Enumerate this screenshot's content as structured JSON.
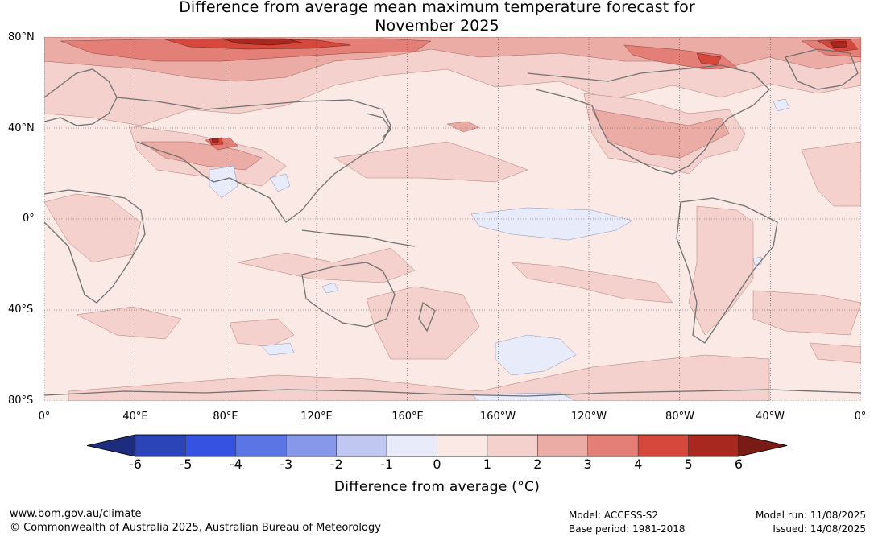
{
  "title": {
    "line1": "Difference from average mean maximum temperature forecast for",
    "line2": "November 2025"
  },
  "lat_labels": [
    "80°N",
    "40°N",
    "0°",
    "40°S",
    "80°S"
  ],
  "lon_labels": [
    "0°",
    "40°E",
    "80°E",
    "120°E",
    "160°E",
    "160°W",
    "120°W",
    "80°W",
    "40°W",
    "0°"
  ],
  "colorbar": {
    "ticks": [
      "-6",
      "-5",
      "-4",
      "-3",
      "-2",
      "-1",
      "0",
      "1",
      "2",
      "3",
      "4",
      "5",
      "6"
    ],
    "colors": [
      "#1e2c7e",
      "#2b44b8",
      "#3553e0",
      "#5b75e5",
      "#8797ea",
      "#c0c8f2",
      "#e8ebfa",
      "#fbe9e6",
      "#f4d1cd",
      "#ebaca5",
      "#e37f77",
      "#d6473c",
      "#a8271f",
      "#7a1c16"
    ],
    "title": "Difference from average (°C)"
  },
  "footer": {
    "url": "www.bom.gov.au/climate",
    "copyright": "© Commonwealth of Australia 2025, Australian Bureau of Meteorology",
    "model": "Model: ACCESS-S2",
    "base_period": "Base period: 1981-2018",
    "model_run": "Model run: 11/08/2025",
    "issued": "Issued: 14/08/2025"
  }
}
